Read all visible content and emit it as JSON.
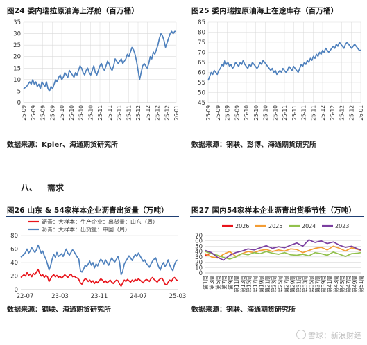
{
  "figures": [
    {
      "title": "图24  委内瑞拉原油海上浮舱（百万桶）",
      "source": "数据来源：Kpler、海通期货研究所"
    },
    {
      "title": "图25  委内瑞拉原油海上在途库存（百万桶）",
      "source": "数据来源：钢联、彭博、海通期货研究所"
    },
    {
      "title": "图26  山东 & 54家样本企业沥青出货量（万吨）",
      "source": "数据来源：钢联、海通期货研究所"
    },
    {
      "title": "图27  国内54家样本企业沥青出货季节性（万吨）",
      "source": "数据来源：钢联、海通期货研究所"
    }
  ],
  "section": {
    "number": "八、",
    "title": "需求"
  },
  "watermark": {
    "text": "雪球：新浪财经"
  },
  "colors": {
    "blue": "#4f81bd",
    "red": "#e8141b",
    "orange": "#f39c34",
    "green": "#92c14d",
    "purple": "#7b3fa0",
    "grid": "#d9d9d9"
  },
  "chart_data": [
    {
      "type": "line",
      "title": "图24  委内瑞拉原油海上浮舱（百万桶）",
      "ylim": [
        0,
        35
      ],
      "yticks": [
        0,
        5,
        10,
        15,
        20,
        25,
        30,
        35
      ],
      "xticks": [
        "25-09",
        "25-09",
        "25-09",
        "25-09",
        "25-10",
        "25-10",
        "25-10",
        "25-10",
        "25-11",
        "25-11",
        "25-11",
        "25-11",
        "25-12",
        "25-12",
        "25-12",
        "25-12",
        "26-01"
      ],
      "x_range": [
        0,
        100
      ],
      "series": [
        {
          "name": "",
          "color": "#4f81bd",
          "x": [
            0,
            2,
            4,
            5,
            6,
            7,
            8,
            9,
            10,
            11,
            12,
            13,
            14,
            15,
            16,
            17,
            18,
            19,
            20,
            21,
            22,
            23,
            24,
            25,
            26,
            27,
            28,
            29,
            30,
            31,
            32,
            33,
            34,
            35,
            36,
            37,
            38,
            39,
            40,
            41,
            42,
            43,
            44,
            45,
            46,
            47,
            48,
            49,
            50,
            51,
            52,
            53,
            54,
            55,
            56,
            57,
            58,
            59,
            60,
            61,
            62,
            63,
            64,
            65,
            66,
            67,
            68,
            69,
            70,
            71,
            72,
            73,
            74,
            75,
            76,
            77,
            78,
            79,
            80,
            81,
            82,
            83,
            84,
            85,
            86,
            87,
            88,
            89,
            90,
            91,
            92,
            93,
            94,
            95,
            96,
            97,
            98,
            99,
            100
          ],
          "y": [
            6,
            7,
            9,
            8,
            10,
            8,
            9,
            7,
            8,
            6,
            9,
            8,
            7,
            9,
            6,
            5,
            7,
            6,
            8,
            10,
            9,
            11,
            12,
            10,
            11,
            13,
            12,
            11,
            14,
            13,
            12,
            11,
            13,
            12,
            14,
            16,
            15,
            13,
            12,
            14,
            15,
            13,
            12,
            14,
            16,
            13,
            12,
            14,
            16,
            17,
            15,
            14,
            16,
            18,
            17,
            15,
            14,
            16,
            19,
            18,
            17,
            18,
            19,
            17,
            18,
            19,
            21,
            20,
            22,
            24,
            23,
            21,
            18,
            14,
            10,
            13,
            16,
            17,
            16,
            15,
            17,
            20,
            19,
            22,
            21,
            23,
            25,
            28,
            30,
            29,
            27,
            24,
            26,
            28,
            30,
            31,
            30,
            31,
            31
          ]
        }
      ]
    },
    {
      "type": "line",
      "title": "图25  委内瑞拉原油海上在途库存（百万桶）",
      "ylim": [
        45,
        85
      ],
      "yticks": [
        45,
        50,
        55,
        60,
        65,
        70,
        75,
        80,
        85
      ],
      "xticks": [
        "25-09",
        "25-09",
        "25-09",
        "25-09",
        "25-10",
        "25-10",
        "25-10",
        "25-10",
        "25-11",
        "25-11",
        "25-11",
        "25-11",
        "25-12",
        "25-12",
        "25-12",
        "25-12",
        "26-01"
      ],
      "x_range": [
        0,
        100
      ],
      "series": [
        {
          "name": "",
          "color": "#4f81bd",
          "x": [
            0,
            1,
            2,
            3,
            4,
            5,
            6,
            7,
            8,
            9,
            10,
            11,
            12,
            13,
            14,
            15,
            16,
            17,
            18,
            19,
            20,
            21,
            22,
            23,
            24,
            25,
            26,
            27,
            28,
            29,
            30,
            31,
            32,
            33,
            34,
            35,
            36,
            37,
            38,
            39,
            40,
            41,
            42,
            43,
            44,
            45,
            46,
            47,
            48,
            49,
            50,
            51,
            52,
            53,
            54,
            55,
            56,
            57,
            58,
            59,
            60,
            61,
            62,
            63,
            64,
            65,
            66,
            67,
            68,
            69,
            70,
            71,
            72,
            73,
            74,
            75,
            76,
            77,
            78,
            79,
            80,
            81,
            82,
            83,
            84,
            85,
            86,
            87,
            88,
            89,
            90,
            91,
            92,
            93,
            94,
            95,
            96,
            97,
            98,
            99,
            100
          ],
          "y": [
            56,
            58,
            60,
            59,
            61,
            60,
            59,
            61,
            62,
            64,
            63,
            66,
            64,
            65,
            63,
            64,
            62,
            63,
            65,
            64,
            63,
            65,
            64,
            66,
            64,
            63,
            62,
            64,
            63,
            65,
            64,
            63,
            62,
            63,
            65,
            64,
            66,
            65,
            64,
            63,
            62,
            61,
            62,
            60,
            61,
            59,
            60,
            61,
            60,
            62,
            61,
            60,
            61,
            63,
            62,
            61,
            63,
            62,
            61,
            60,
            62,
            64,
            63,
            65,
            64,
            66,
            65,
            67,
            66,
            68,
            67,
            69,
            68,
            70,
            69,
            71,
            70,
            72,
            71,
            70,
            71,
            72,
            73,
            72,
            74,
            73,
            75,
            74,
            73,
            72,
            74,
            75,
            74,
            73,
            72,
            73,
            74,
            73,
            72,
            71,
            71
          ]
        }
      ]
    },
    {
      "type": "line",
      "title": "图26  山东 & 54家样本企业沥青出货量（万吨）",
      "ylim": [
        0,
        80
      ],
      "yticks": [
        0,
        20,
        40,
        60,
        80
      ],
      "xticks": [
        "22-07",
        "23-03",
        "23-11",
        "24-07",
        "25-03"
      ],
      "x_range": [
        0,
        100
      ],
      "legend": "top-left",
      "series": [
        {
          "name": "沥青：大样本：生产企业：出货量：山东（周）",
          "color": "#e8141b",
          "x": [
            0,
            2,
            3,
            4,
            5,
            6,
            7,
            8,
            9,
            10,
            11,
            12,
            13,
            14,
            15,
            16,
            17,
            18,
            19,
            20,
            21,
            22,
            23,
            24,
            25,
            26,
            27,
            28,
            29,
            30,
            31,
            32,
            33,
            34,
            35,
            36,
            37,
            38,
            39,
            40,
            41,
            42,
            43,
            44,
            45,
            46,
            47,
            48,
            49,
            50,
            51,
            52,
            53,
            54,
            55,
            56,
            57,
            58,
            59,
            60,
            61,
            62,
            63,
            64,
            65,
            66,
            67,
            68,
            69,
            70,
            71,
            72,
            73,
            74,
            75,
            76,
            77,
            78,
            79,
            80,
            81,
            82,
            83,
            84,
            85,
            86,
            87,
            88,
            89,
            90,
            91,
            92,
            93,
            94,
            95,
            96,
            97,
            98,
            99,
            100
          ],
          "y": [
            18,
            22,
            20,
            25,
            21,
            23,
            19,
            24,
            22,
            26,
            30,
            24,
            20,
            22,
            18,
            21,
            19,
            12,
            16,
            20,
            22,
            19,
            21,
            18,
            20,
            17,
            19,
            22,
            20,
            18,
            21,
            23,
            19,
            20,
            18,
            17,
            15,
            10,
            8,
            13,
            16,
            15,
            12,
            14,
            11,
            13,
            9,
            12,
            10,
            13,
            16,
            14,
            11,
            13,
            10,
            12,
            14,
            11,
            9,
            12,
            14,
            13,
            8,
            5,
            10,
            14,
            12,
            15,
            13,
            11,
            14,
            12,
            15,
            13,
            16,
            14,
            12,
            10,
            13,
            15,
            14,
            12,
            16,
            18,
            15,
            13,
            11,
            14,
            16,
            17,
            13,
            8,
            7,
            11,
            14,
            12,
            16,
            18,
            15,
            13
          ]
        },
        {
          "name": "沥青：大样本：出货量：中国（周）",
          "color": "#4f81bd",
          "x": [
            0,
            2,
            3,
            4,
            5,
            6,
            7,
            8,
            9,
            10,
            11,
            12,
            13,
            14,
            15,
            16,
            17,
            18,
            19,
            20,
            21,
            22,
            23,
            24,
            25,
            26,
            27,
            28,
            29,
            30,
            31,
            32,
            33,
            34,
            35,
            36,
            37,
            38,
            39,
            40,
            41,
            42,
            43,
            44,
            45,
            46,
            47,
            48,
            49,
            50,
            51,
            52,
            53,
            54,
            55,
            56,
            57,
            58,
            59,
            60,
            61,
            62,
            63,
            64,
            65,
            66,
            67,
            68,
            69,
            70,
            71,
            72,
            73,
            74,
            75,
            76,
            77,
            78,
            79,
            80,
            81,
            82,
            83,
            84,
            85,
            86,
            87,
            88,
            89,
            90,
            91,
            92,
            93,
            94,
            95,
            96,
            97,
            98,
            99,
            100
          ],
          "y": [
            48,
            52,
            55,
            60,
            54,
            57,
            62,
            58,
            55,
            59,
            66,
            60,
            54,
            57,
            50,
            45,
            38,
            29,
            35,
            45,
            52,
            48,
            55,
            49,
            51,
            53,
            49,
            55,
            60,
            54,
            51,
            55,
            59,
            56,
            52,
            48,
            45,
            28,
            26,
            30,
            36,
            34,
            38,
            42,
            36,
            40,
            32,
            38,
            35,
            41,
            45,
            42,
            38,
            44,
            40,
            36,
            42,
            47,
            43,
            41,
            45,
            49,
            40,
            22,
            27,
            38,
            42,
            46,
            50,
            47,
            43,
            48,
            52,
            49,
            54,
            50,
            46,
            42,
            44,
            39,
            36,
            33,
            38,
            42,
            45,
            47,
            40,
            33,
            29,
            36,
            40,
            34,
            38,
            44,
            36,
            31,
            28,
            37,
            42,
            44
          ]
        }
      ]
    },
    {
      "type": "line",
      "title": "图27  国内54家样本企业沥青出货季节性（万吨）",
      "ylim": [
        0,
        70
      ],
      "yticks": [
        0,
        10,
        20,
        30,
        40,
        50,
        60,
        70
      ],
      "xticks": [
        "第1周",
        "第3周",
        "第5周",
        "第7周",
        "第9周",
        "第11周",
        "第13周",
        "第15周",
        "第17周",
        "第19周",
        "第21周",
        "第23周",
        "第25周",
        "第27周",
        "第29周",
        "第31周",
        "第33周",
        "第35周",
        "第37周",
        "第39周",
        "第41周",
        "第43周",
        "第45周",
        "第47周",
        "第49周",
        "第51周"
      ],
      "x_range": [
        1,
        52
      ],
      "legend": "top-center",
      "series": [
        {
          "name": "2026",
          "color": "#e8141b",
          "x": [
            1,
            2,
            3
          ],
          "y": [
            33,
            35,
            38
          ]
        },
        {
          "name": "2025",
          "color": "#f39c34",
          "x": [
            1,
            3,
            5,
            7,
            9,
            11,
            13,
            15,
            17,
            19,
            21,
            23,
            25,
            27,
            29,
            31,
            33,
            35,
            37,
            39,
            41,
            43,
            45,
            47,
            49,
            51,
            52
          ],
          "y": [
            36,
            30,
            28,
            35,
            40,
            31,
            36,
            40,
            38,
            42,
            44,
            40,
            43,
            41,
            45,
            44,
            38,
            42,
            46,
            48,
            43,
            50,
            46,
            41,
            47,
            44,
            42
          ]
        },
        {
          "name": "2024",
          "color": "#92c14d",
          "x": [
            1,
            3,
            5,
            7,
            9,
            11,
            13,
            15,
            17,
            19,
            21,
            23,
            25,
            27,
            29,
            31,
            33,
            35,
            37,
            39,
            41,
            43,
            45,
            47,
            49,
            51,
            52
          ],
          "y": [
            40,
            36,
            33,
            29,
            26,
            30,
            36,
            34,
            38,
            36,
            40,
            37,
            35,
            38,
            34,
            33,
            35,
            32,
            38,
            36,
            33,
            39,
            35,
            31,
            36,
            37,
            38
          ]
        },
        {
          "name": "2023",
          "color": "#7b3fa0",
          "x": [
            1,
            3,
            5,
            7,
            9,
            11,
            13,
            15,
            17,
            19,
            21,
            23,
            25,
            27,
            29,
            31,
            33,
            35,
            37,
            39,
            41,
            43,
            45,
            47,
            49,
            51,
            52
          ],
          "y": [
            42,
            38,
            29,
            24,
            33,
            38,
            41,
            45,
            43,
            47,
            51,
            46,
            49,
            47,
            52,
            56,
            50,
            62,
            57,
            60,
            55,
            58,
            52,
            48,
            50,
            45,
            43
          ]
        }
      ]
    }
  ]
}
